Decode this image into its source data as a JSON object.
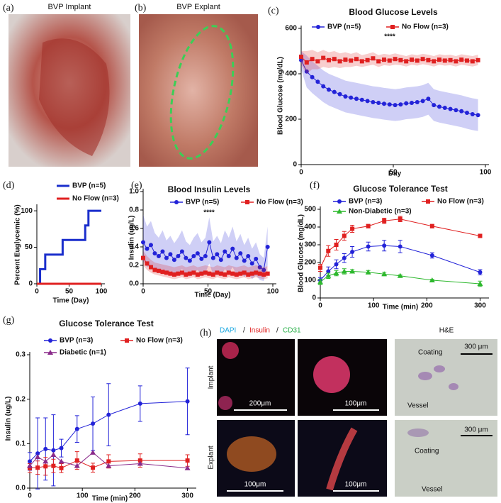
{
  "chart_data": [
    {
      "type": "line",
      "panel": "(c)",
      "title": "Blood Glucose Levels",
      "xlabel": "Day",
      "ylabel": "Blood Glucose (mg/dL)",
      "annotation": "****",
      "x": [
        0,
        3,
        6,
        9,
        12,
        15,
        18,
        21,
        24,
        27,
        30,
        33,
        36,
        39,
        42,
        45,
        48,
        51,
        54,
        57,
        60,
        63,
        66,
        69,
        72,
        75,
        78,
        81,
        84,
        87,
        90,
        93,
        96
      ],
      "xlim": [
        0,
        100
      ],
      "xticks": [
        0,
        50,
        100
      ],
      "ylim": [
        0,
        600
      ],
      "yticks": [
        0,
        200,
        400,
        600
      ],
      "series": [
        {
          "name": "BVP (n=5)",
          "color": "#2323d8",
          "marker": "circle",
          "values": [
            460,
            410,
            385,
            365,
            345,
            330,
            320,
            310,
            300,
            295,
            290,
            285,
            280,
            275,
            272,
            268,
            265,
            262,
            265,
            270,
            272,
            275,
            280,
            290,
            262,
            255,
            250,
            245,
            240,
            235,
            228,
            222,
            218
          ],
          "lower": [
            420,
            340,
            315,
            295,
            275,
            260,
            250,
            240,
            230,
            225,
            220,
            215,
            210,
            205,
            202,
            198,
            195,
            192,
            195,
            200,
            202,
            205,
            210,
            220,
            192,
            185,
            180,
            175,
            170,
            165,
            158,
            152,
            148
          ],
          "upper": [
            500,
            480,
            455,
            435,
            415,
            400,
            390,
            380,
            370,
            365,
            360,
            355,
            350,
            345,
            342,
            338,
            335,
            332,
            335,
            340,
            342,
            345,
            350,
            360,
            332,
            325,
            320,
            315,
            310,
            305,
            298,
            292,
            288
          ]
        },
        {
          "name": "No Flow (n=3)",
          "color": "#e02020",
          "marker": "square",
          "values": [
            475,
            450,
            465,
            455,
            470,
            460,
            465,
            455,
            462,
            458,
            465,
            455,
            460,
            468,
            455,
            462,
            458,
            465,
            460,
            455,
            462,
            458,
            465,
            460,
            455,
            462,
            458,
            460,
            455,
            462,
            458,
            455,
            460
          ],
          "lower": [
            440,
            400,
            420,
            420,
            430,
            425,
            430,
            425,
            430,
            430,
            435,
            430,
            435,
            440,
            430,
            438,
            435,
            440,
            438,
            432,
            440,
            436,
            442,
            438,
            432,
            440,
            436,
            438,
            432,
            440,
            436,
            432,
            438
          ],
          "upper": [
            500,
            500,
            505,
            495,
            505,
            495,
            500,
            490,
            495,
            488,
            495,
            482,
            488,
            495,
            482,
            488,
            484,
            490,
            484,
            478,
            486,
            482,
            488,
            484,
            478,
            486,
            482,
            484,
            478,
            486,
            482,
            478,
            484
          ]
        }
      ]
    },
    {
      "type": "line",
      "panel": "(d)",
      "xlabel": "Time (Day)",
      "ylabel": "Percent Euglycemic (%)",
      "xlim": [
        0,
        100
      ],
      "xticks": [
        0,
        50,
        100
      ],
      "ylim": [
        0,
        105
      ],
      "yticks": [
        0,
        50,
        100
      ],
      "series": [
        {
          "name": "BVP (n=5)",
          "color": "#1a2ecc",
          "x": [
            0,
            5,
            5,
            13,
            13,
            40,
            40,
            75,
            75,
            80,
            80,
            100
          ],
          "values": [
            0,
            0,
            20,
            20,
            40,
            40,
            60,
            60,
            80,
            80,
            100,
            100
          ]
        },
        {
          "name": "No Flow (n=3)",
          "color": "#e02020",
          "x": [
            0,
            100
          ],
          "values": [
            0,
            0
          ]
        }
      ]
    },
    {
      "type": "line",
      "panel": "(e)",
      "title": "Blood Insulin Levels",
      "xlabel": "Time (Day)",
      "ylabel": "Insulin (ug/L)",
      "annotation": "****",
      "x": [
        0,
        3,
        6,
        9,
        12,
        15,
        18,
        21,
        24,
        27,
        30,
        33,
        36,
        39,
        42,
        45,
        48,
        51,
        54,
        57,
        60,
        63,
        66,
        69,
        72,
        75,
        78,
        81,
        84,
        87,
        90,
        93,
        96
      ],
      "xlim": [
        0,
        100
      ],
      "xticks": [
        0,
        50,
        100
      ],
      "ylim": [
        0,
        1
      ],
      "yticks": [
        {
          "value": 0,
          "label": "0.0"
        },
        0.2,
        0.4,
        0.6,
        0.8,
        {
          "value": 1,
          "label": "1.0"
        }
      ],
      "series": [
        {
          "name": "BVP (n=5)",
          "color": "#2323d8",
          "marker": "circle",
          "values": [
            0.45,
            0.38,
            0.42,
            0.33,
            0.3,
            0.35,
            0.28,
            0.32,
            0.26,
            0.3,
            0.35,
            0.28,
            0.25,
            0.3,
            0.33,
            0.27,
            0.3,
            0.45,
            0.28,
            0.32,
            0.26,
            0.35,
            0.3,
            0.38,
            0.28,
            0.33,
            0.25,
            0.3,
            0.22,
            0.27,
            0.18,
            0.15,
            0.4
          ],
          "lower": [
            0.25,
            0.18,
            0.2,
            0.15,
            0.12,
            0.16,
            0.1,
            0.14,
            0.09,
            0.12,
            0.16,
            0.1,
            0.08,
            0.12,
            0.15,
            0.09,
            0.12,
            0.22,
            0.1,
            0.14,
            0.08,
            0.16,
            0.12,
            0.18,
            0.1,
            0.14,
            0.07,
            0.12,
            0.05,
            0.09,
            0.04,
            0.03,
            0.2
          ],
          "upper": [
            0.75,
            0.62,
            0.68,
            0.55,
            0.5,
            0.58,
            0.47,
            0.52,
            0.44,
            0.5,
            0.58,
            0.46,
            0.42,
            0.5,
            0.55,
            0.45,
            0.5,
            0.72,
            0.46,
            0.52,
            0.44,
            0.58,
            0.5,
            0.62,
            0.46,
            0.54,
            0.42,
            0.5,
            0.38,
            0.45,
            0.32,
            0.28,
            0.62
          ]
        },
        {
          "name": "No Flow (n=3)",
          "color": "#e02020",
          "marker": "square",
          "values": [
            0.28,
            0.22,
            0.18,
            0.15,
            0.14,
            0.13,
            0.12,
            0.11,
            0.1,
            0.11,
            0.12,
            0.1,
            0.11,
            0.12,
            0.1,
            0.11,
            0.12,
            0.11,
            0.1,
            0.12,
            0.11,
            0.1,
            0.12,
            0.11,
            0.1,
            0.11,
            0.12,
            0.1,
            0.11,
            0.12,
            0.11,
            0.1,
            0.11
          ],
          "lower": [
            0.2,
            0.15,
            0.12,
            0.1,
            0.09,
            0.08,
            0.07,
            0.06,
            0.05,
            0.06,
            0.07,
            0.05,
            0.06,
            0.07,
            0.05,
            0.06,
            0.07,
            0.06,
            0.05,
            0.07,
            0.06,
            0.05,
            0.07,
            0.06,
            0.05,
            0.06,
            0.07,
            0.05,
            0.06,
            0.07,
            0.06,
            0.05,
            0.06
          ],
          "upper": [
            0.36,
            0.3,
            0.26,
            0.23,
            0.22,
            0.21,
            0.2,
            0.19,
            0.18,
            0.19,
            0.2,
            0.18,
            0.19,
            0.2,
            0.18,
            0.19,
            0.2,
            0.19,
            0.18,
            0.2,
            0.19,
            0.18,
            0.2,
            0.19,
            0.18,
            0.19,
            0.2,
            0.18,
            0.19,
            0.2,
            0.19,
            0.18,
            0.19
          ]
        }
      ]
    },
    {
      "type": "line",
      "panel": "(f)",
      "title": "Glucose Tolerance Test",
      "xlabel": "Time (min)",
      "ylabel": "Blood Glucose (mg/dL)",
      "x": [
        0,
        15,
        30,
        45,
        60,
        90,
        120,
        150,
        210,
        300
      ],
      "xlim": [
        0,
        310
      ],
      "xticks": [
        0,
        100,
        200,
        300
      ],
      "ylim": [
        0,
        500
      ],
      "yticks": [
        0,
        100,
        200,
        300,
        400,
        500
      ],
      "series": [
        {
          "name": "BVP (n=3)",
          "color": "#2323d8",
          "marker": "circle",
          "values": [
            100,
            150,
            190,
            225,
            260,
            290,
            295,
            290,
            240,
            145
          ],
          "error": [
            15,
            25,
            25,
            25,
            30,
            25,
            30,
            35,
            15,
            15
          ]
        },
        {
          "name": "No Flow (n=3)",
          "color": "#e02020",
          "marker": "square",
          "values": [
            170,
            265,
            300,
            350,
            390,
            405,
            435,
            445,
            405,
            350
          ],
          "error": [
            20,
            30,
            30,
            25,
            20,
            10,
            15,
            15,
            10,
            10
          ]
        },
        {
          "name": "Non-Diabetic (n=3)",
          "color": "#2db82d",
          "marker": "triangle",
          "values": [
            90,
            125,
            140,
            150,
            150,
            145,
            135,
            125,
            100,
            80
          ],
          "error": [
            15,
            15,
            15,
            15,
            10,
            10,
            10,
            5,
            5,
            15
          ]
        }
      ]
    },
    {
      "type": "line",
      "panel": "(g)",
      "title": "Glucose Tolerance Test",
      "xlabel": "Time (min)",
      "ylabel": "Insulin (ug/L)",
      "x": [
        0,
        15,
        30,
        45,
        60,
        90,
        120,
        150,
        210,
        300
      ],
      "xlim": [
        0,
        310
      ],
      "xticks": [
        0,
        100,
        200,
        300
      ],
      "ylim": [
        0,
        0.3
      ],
      "yticks": [
        {
          "value": 0,
          "label": "0.0"
        },
        0.1,
        0.2,
        0.3
      ],
      "series": [
        {
          "name": "BVP (n=3)",
          "color": "#2323d8",
          "marker": "circle",
          "values": [
            0.06,
            0.078,
            0.088,
            0.085,
            0.09,
            0.133,
            0.145,
            0.165,
            0.19,
            0.195
          ],
          "error": [
            0.02,
            0.08,
            0.07,
            0.08,
            0.02,
            0.03,
            0.06,
            0.07,
            0.04,
            0.075
          ]
        },
        {
          "name": "No Flow (n=3)",
          "color": "#e02020",
          "marker": "square",
          "values": [
            0.045,
            0.046,
            0.049,
            0.05,
            0.045,
            0.062,
            0.046,
            0.06,
            0.062,
            0.062
          ],
          "error": [
            0.01,
            0.015,
            0.02,
            0.015,
            0.01,
            0.02,
            0.01,
            0.015,
            0.015,
            0.013
          ]
        },
        {
          "name": "Diabetic (n=1)",
          "color": "#8a2a8a",
          "marker": "triangle",
          "values": [
            0.05,
            0.07,
            0.06,
            0.075,
            0.06,
            0.05,
            0.08,
            0.05,
            0.055,
            0.045
          ]
        }
      ]
    }
  ],
  "images": {
    "a": {
      "panel": "(a)",
      "title": "BVP Implant"
    },
    "b": {
      "panel": "(b)",
      "title": "BVP Explant"
    },
    "h": {
      "panel": "(h)",
      "stains": [
        "DAPI",
        "Insulin",
        "CD31"
      ],
      "separator": "/",
      "he_title": "H&E",
      "rows": [
        "Implant",
        "Explant"
      ],
      "scale_bars": [
        "200μm",
        "100μm",
        "100μm",
        "100μm",
        "300 μm",
        "300 μm"
      ],
      "he_labels": [
        "Coating",
        "Vessel",
        "Coating",
        "Vessel"
      ]
    }
  }
}
